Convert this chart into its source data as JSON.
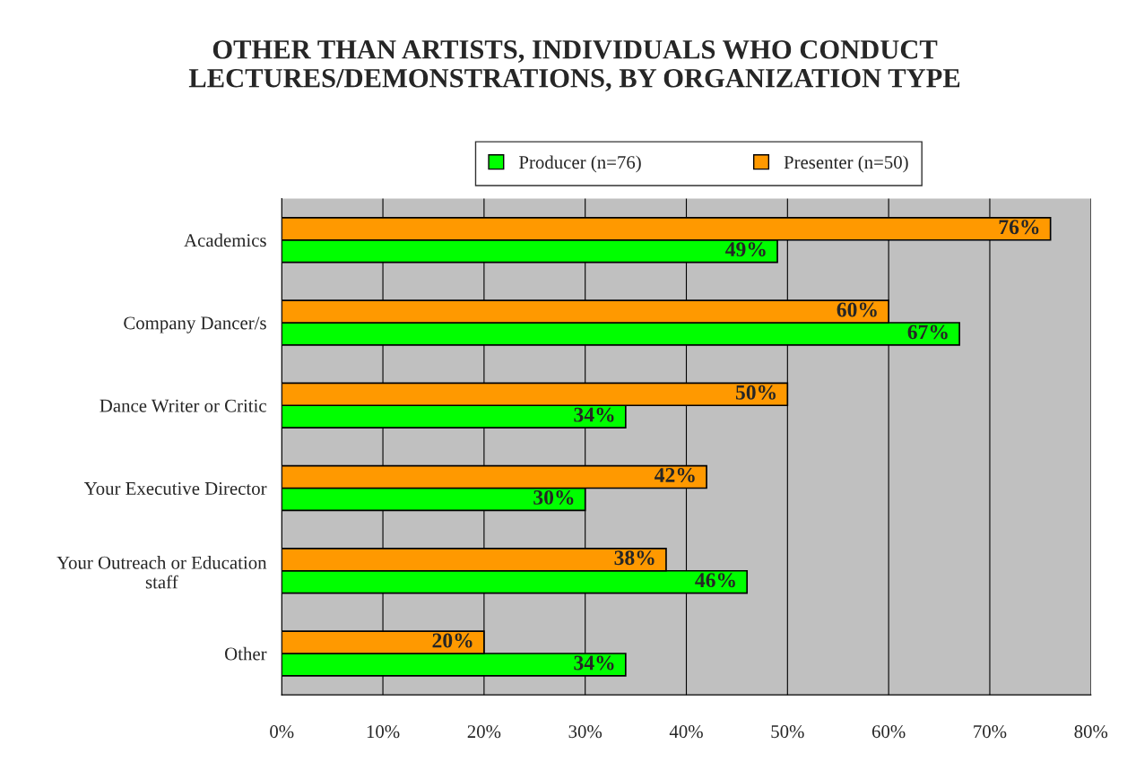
{
  "chart_data": {
    "type": "bar",
    "orientation": "horizontal",
    "title": "OTHER THAN ARTISTS, INDIVIDUALS WHO CONDUCT LECTURES/DEMONSTRATIONS, BY ORGANIZATION TYPE",
    "categories": [
      "Academics",
      "Company Dancer/s",
      "Dance Writer or Critic",
      "Your Executive Director",
      "Your Outreach or Education\nstaff",
      "Other"
    ],
    "series": [
      {
        "name": "Producer (n=76)",
        "color": "#00ff00",
        "values": [
          49,
          67,
          34,
          30,
          46,
          34
        ],
        "value_labels": [
          "49%",
          "67%",
          "34%",
          "30%",
          "46%",
          "34%"
        ]
      },
      {
        "name": "Presenter (n=50)",
        "color": "#ff9900",
        "values": [
          76,
          60,
          50,
          42,
          38,
          20
        ],
        "value_labels": [
          "76%",
          "60%",
          "50%",
          "42%",
          "38%",
          "20%"
        ]
      }
    ],
    "xlim": [
      0,
      80
    ],
    "xticks": [
      {
        "value": 0,
        "label": "0%"
      },
      {
        "value": 10,
        "label": "10%"
      },
      {
        "value": 20,
        "label": "20%"
      },
      {
        "value": 30,
        "label": "30%"
      },
      {
        "value": 40,
        "label": "40%"
      },
      {
        "value": 50,
        "label": "50%"
      },
      {
        "value": 60,
        "label": "60%"
      },
      {
        "value": 70,
        "label": "70%"
      },
      {
        "value": 80,
        "label": "80%"
      }
    ],
    "grid": "x",
    "legend": "top"
  }
}
